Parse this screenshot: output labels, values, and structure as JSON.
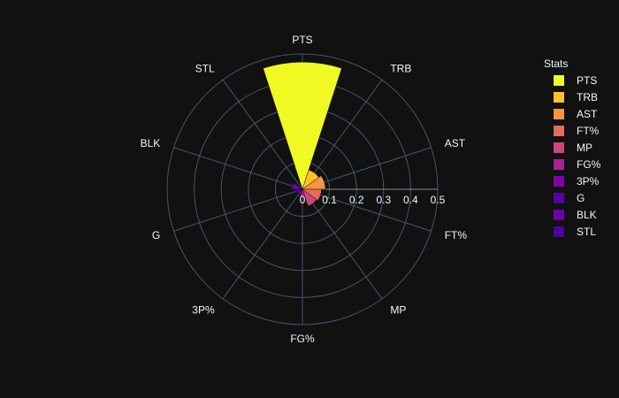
{
  "chart_data": {
    "type": "barpolar",
    "theme": "dark",
    "angular_labels": [
      "PTS",
      "TRB",
      "AST",
      "FT%",
      "MP",
      "FG%",
      "3P%",
      "G",
      "BLK",
      "STL"
    ],
    "radial_ticks": [
      "0",
      "0.1",
      "0.2",
      "0.3",
      "0.4",
      "0.5"
    ],
    "radial_range": [
      0,
      0.5
    ],
    "series": [
      {
        "name": "PTS",
        "value": 0.47,
        "color": "#f0f921"
      },
      {
        "name": "TRB",
        "value": 0.075,
        "color": "#fdc328"
      },
      {
        "name": "AST",
        "value": 0.085,
        "color": "#f89441"
      },
      {
        "name": "FT%",
        "value": 0.07,
        "color": "#e56b5d"
      },
      {
        "name": "MP",
        "value": 0.065,
        "color": "#cb4778"
      },
      {
        "name": "FG%",
        "value": 0.03,
        "color": "#a82296"
      },
      {
        "name": "3P%",
        "value": 0.02,
        "color": "#7e03a8"
      },
      {
        "name": "G",
        "value": 0.025,
        "color": "#5302a3"
      },
      {
        "name": "BLK",
        "value": 0.04,
        "color": "#6a00a8"
      },
      {
        "name": "STL",
        "value": 0.015,
        "color": "#4b03a1"
      }
    ],
    "legend": {
      "title": "Stats",
      "position": "right"
    },
    "grid": true
  }
}
